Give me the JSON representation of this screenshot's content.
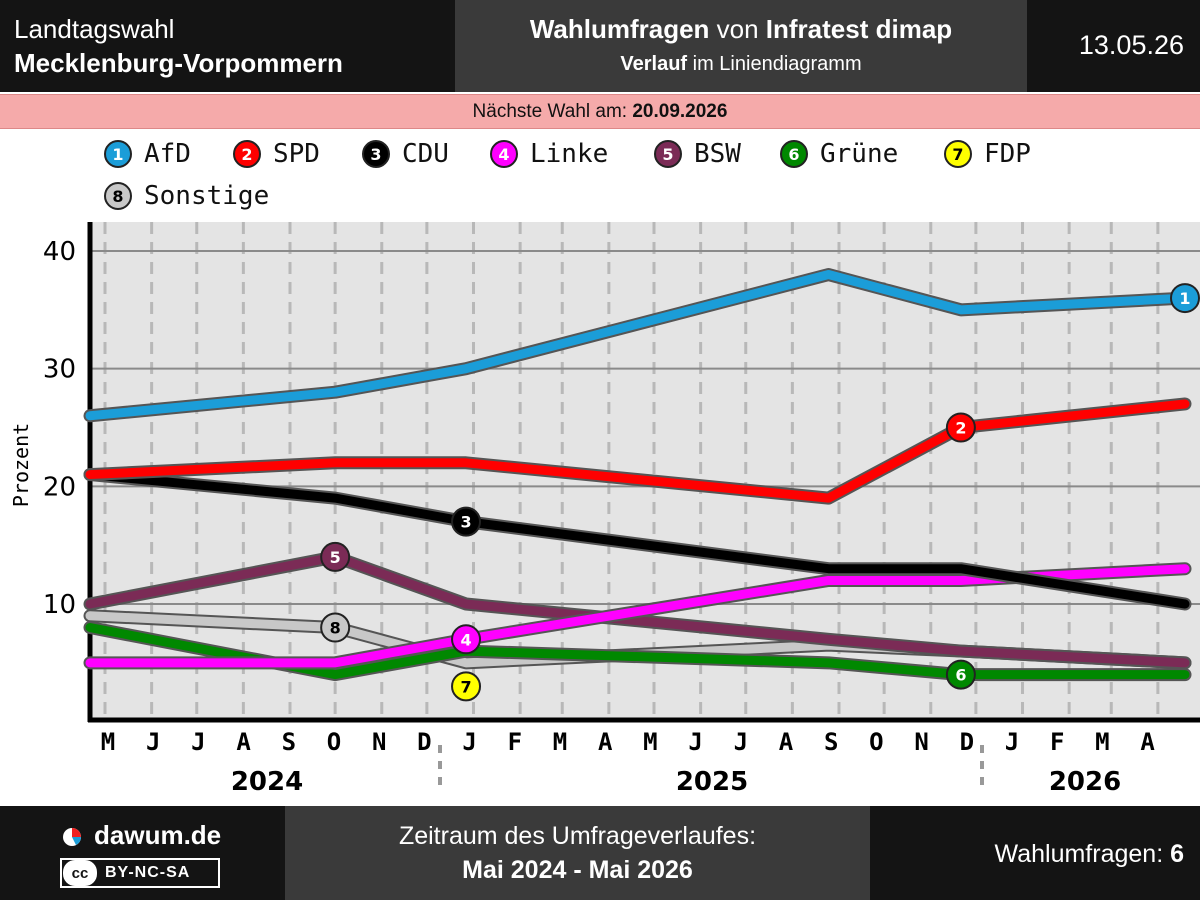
{
  "header": {
    "region_line1": "Landtagswahl",
    "region_line2": "Mecklenburg-Vorpommern",
    "title_bold1": "Wahlumfragen",
    "title_mid": " von ",
    "title_bold2": "Infratest dimap",
    "subtitle_bold": "Verlauf",
    "subtitle_rest": " im Liniendiagramm",
    "date": "13.05.26"
  },
  "next_election": {
    "label": "Nächste Wahl am: ",
    "date": "20.09.2026"
  },
  "footer": {
    "brand": "dawum.de",
    "license": "BY-NC-SA",
    "license_logo": "cc",
    "period_label": "Zeitraum des Umfrageverlaufes:",
    "period_value": "Mai 2024 - Mai 2026",
    "polls_label": "Wahlumfragen: ",
    "polls_count": "6"
  },
  "chart_data": {
    "type": "line",
    "ylabel": "Prozent",
    "ylim": [
      0,
      40
    ],
    "yticks": [
      10,
      20,
      30,
      40
    ],
    "x_range": [
      "2024-05-15",
      "2026-05-13"
    ],
    "months": [
      "M",
      "J",
      "J",
      "A",
      "S",
      "O",
      "N",
      "D",
      "J",
      "F",
      "M",
      "A",
      "M",
      "J",
      "J",
      "A",
      "S",
      "O",
      "N",
      "D",
      "J",
      "F",
      "M",
      "A"
    ],
    "years": [
      "2024",
      "2025",
      "2026"
    ],
    "grid": true,
    "legend_position": "top",
    "series": [
      {
        "name": "AfD",
        "color": "#1b9dd8",
        "badge_text": "1",
        "badge_text_color": "#ffffff",
        "badge_at": 5,
        "points": [
          [
            "2024-05-15",
            26
          ],
          [
            "2024-10-25",
            28
          ],
          [
            "2025-01-20",
            30
          ],
          [
            "2025-09-18",
            38
          ],
          [
            "2025-12-15",
            35
          ],
          [
            "2026-05-13",
            36
          ]
        ]
      },
      {
        "name": "SPD",
        "color": "#ff0000",
        "badge_text": "2",
        "badge_text_color": "#ffffff",
        "badge_at": 4,
        "points": [
          [
            "2024-05-15",
            21
          ],
          [
            "2024-10-25",
            22
          ],
          [
            "2025-01-20",
            22
          ],
          [
            "2025-09-18",
            19
          ],
          [
            "2025-12-15",
            25
          ],
          [
            "2026-05-13",
            27
          ]
        ]
      },
      {
        "name": "CDU",
        "color": "#000000",
        "badge_text": "3",
        "badge_text_color": "#ffffff",
        "badge_at": 2,
        "points": [
          [
            "2024-05-15",
            21
          ],
          [
            "2024-10-25",
            19
          ],
          [
            "2025-01-20",
            17
          ],
          [
            "2025-09-18",
            13
          ],
          [
            "2025-12-15",
            13
          ],
          [
            "2026-05-13",
            10
          ]
        ]
      },
      {
        "name": "Linke",
        "color": "#ff00ff",
        "badge_text": "4",
        "badge_text_color": "#ffffff",
        "badge_at": 2,
        "points": [
          [
            "2024-05-15",
            5
          ],
          [
            "2024-10-25",
            5
          ],
          [
            "2025-01-20",
            7
          ],
          [
            "2025-09-18",
            12
          ],
          [
            "2025-12-15",
            12
          ],
          [
            "2026-05-13",
            13
          ]
        ]
      },
      {
        "name": "BSW",
        "color": "#7b2b56",
        "badge_text": "5",
        "badge_text_color": "#ffffff",
        "badge_at": 1,
        "points": [
          [
            "2024-05-15",
            10
          ],
          [
            "2024-10-25",
            14
          ],
          [
            "2025-01-20",
            10
          ],
          [
            "2025-09-18",
            7
          ],
          [
            "2025-12-15",
            6
          ],
          [
            "2026-05-13",
            5
          ]
        ]
      },
      {
        "name": "Grüne",
        "color": "#008800",
        "badge_text": "6",
        "badge_text_color": "#ffffff",
        "badge_at": 4,
        "points": [
          [
            "2024-05-15",
            8
          ],
          [
            "2024-10-25",
            4
          ],
          [
            "2025-01-20",
            6
          ],
          [
            "2025-09-18",
            5
          ],
          [
            "2025-12-15",
            4
          ],
          [
            "2026-05-13",
            4
          ]
        ]
      },
      {
        "name": "FDP",
        "color": "#ffff00",
        "badge_text": "7",
        "badge_text_color": "#000000",
        "badge_at": 0,
        "points": [
          [
            "2025-01-20",
            3
          ]
        ]
      },
      {
        "name": "Sonstige",
        "color": "#c8c8c8",
        "badge_text": "8",
        "badge_text_color": "#000000",
        "badge_at": 1,
        "points": [
          [
            "2024-05-15",
            9
          ],
          [
            "2024-10-25",
            8
          ],
          [
            "2025-01-20",
            5
          ],
          [
            "2025-09-18",
            6.5
          ],
          [
            "2025-12-15",
            6
          ],
          [
            "2026-05-13",
            5
          ]
        ]
      }
    ]
  }
}
